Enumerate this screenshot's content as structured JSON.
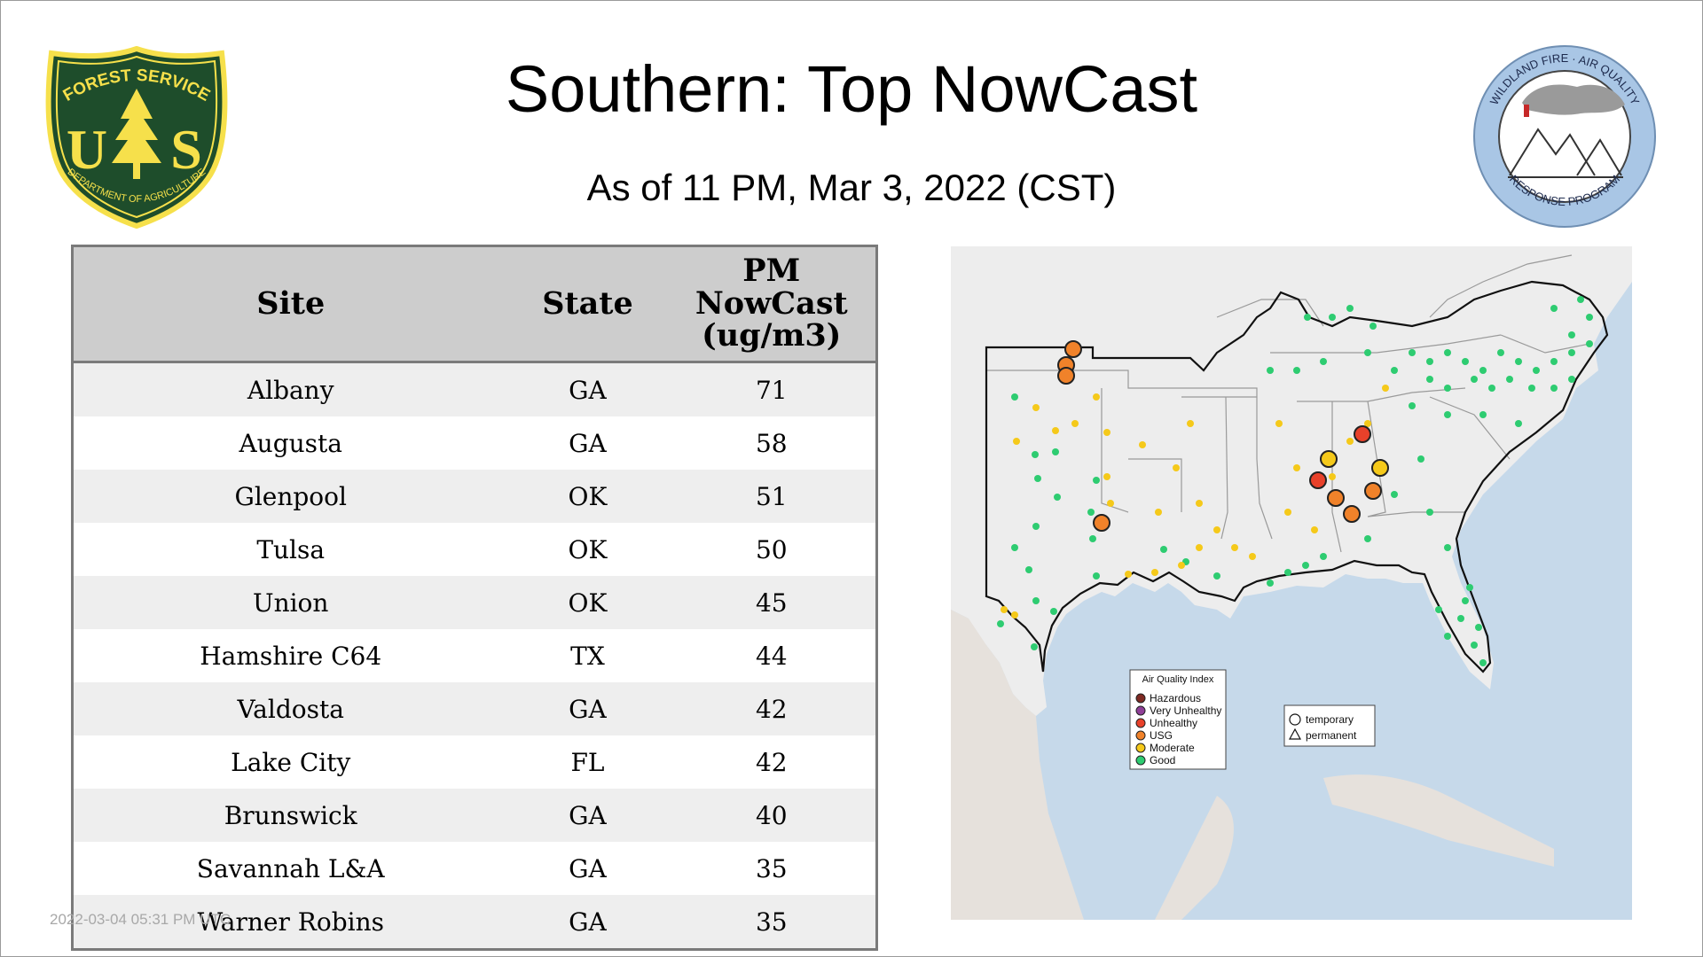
{
  "header": {
    "title": "Southern: Top NowCast",
    "subtitle": "As of 11 PM, Mar  3, 2022 (CST)"
  },
  "logos": {
    "forest_service": {
      "top_text": "FOREST SERVICE",
      "letters": "U S",
      "bottom_text": "DEPARTMENT OF AGRICULTURE",
      "colors": [
        "#1e4d2b",
        "#f6e04b"
      ]
    },
    "wildland_fire": {
      "ring_text_top": "WILDLAND FIRE · AIR QUALITY",
      "ring_text_bottom": "RESPONSE PROGRAM",
      "colors": [
        "#a9c6e5",
        "#ffffff",
        "#333333"
      ]
    }
  },
  "table": {
    "headers": {
      "site": "Site",
      "state": "State",
      "pm_line1": "PM",
      "pm_line2": "NowCast",
      "pm_line3": "(ug/m3)"
    },
    "rows": [
      {
        "site": "Albany",
        "state": "GA",
        "value": "71"
      },
      {
        "site": "Augusta",
        "state": "GA",
        "value": "58"
      },
      {
        "site": "Glenpool",
        "state": "OK",
        "value": "51"
      },
      {
        "site": "Tulsa",
        "state": "OK",
        "value": "50"
      },
      {
        "site": "Union",
        "state": "OK",
        "value": "45"
      },
      {
        "site": "Hamshire C64",
        "state": "TX",
        "value": "44"
      },
      {
        "site": "Valdosta",
        "state": "GA",
        "value": "42"
      },
      {
        "site": "Lake City",
        "state": "FL",
        "value": "42"
      },
      {
        "site": "Brunswick",
        "state": "GA",
        "value": "40"
      },
      {
        "site": "Savannah L&A",
        "state": "GA",
        "value": "35"
      },
      {
        "site": "Warner Robins",
        "state": "GA",
        "value": "35"
      }
    ]
  },
  "footer": {
    "stamp": "2022-03-04 05:31 PM UTC"
  },
  "map": {
    "legend": {
      "title": "Air Quality Index",
      "items": [
        {
          "label": "Hazardous",
          "color": "#7e2a23"
        },
        {
          "label": "Very Unhealthy",
          "color": "#8f3f97"
        },
        {
          "label": "Unhealthy",
          "color": "#e8412a"
        },
        {
          "label": "USG",
          "color": "#f0822a"
        },
        {
          "label": "Moderate",
          "color": "#f5c91a"
        },
        {
          "label": "Good",
          "color": "#2ecc71"
        }
      ]
    },
    "shape_legend": {
      "temporary": "temporary",
      "permanent": "permanent"
    },
    "colors": {
      "water": "#c6d9ea",
      "land": "#ededed",
      "land_other": "#e6e1dc",
      "border": "#9a9a9a"
    }
  }
}
